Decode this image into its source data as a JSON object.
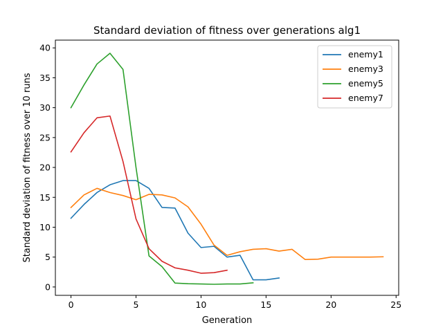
{
  "chart_data": {
    "type": "line",
    "title": "Standard deviation of fitness over generations alg1",
    "xlabel": "Generation",
    "ylabel": "Standard deviation of fitness over 10 runs",
    "xlim": [
      -1.2,
      25.2
    ],
    "ylim": [
      -1.4,
      41.3
    ],
    "xticks": [
      0,
      5,
      10,
      15,
      20,
      25
    ],
    "yticks": [
      0,
      5,
      10,
      15,
      20,
      25,
      30,
      35,
      40
    ],
    "grid": false,
    "legend_position": "top-right",
    "series": [
      {
        "name": "enemy1",
        "color": "#1f77b4",
        "x": [
          0,
          1,
          2,
          3,
          4,
          5,
          6,
          7,
          8,
          9,
          10,
          11,
          12,
          13,
          14,
          15,
          16
        ],
        "y": [
          11.5,
          13.8,
          15.8,
          17.1,
          17.8,
          17.8,
          16.5,
          13.3,
          13.2,
          9.0,
          6.6,
          6.8,
          5.0,
          5.3,
          1.2,
          1.2,
          1.5
        ]
      },
      {
        "name": "enemy3",
        "color": "#ff7f0e",
        "x": [
          0,
          1,
          2,
          3,
          4,
          5,
          6,
          7,
          8,
          9,
          10,
          11,
          12,
          13,
          14,
          15,
          16,
          17,
          18,
          19,
          20,
          21,
          22,
          23,
          24
        ],
        "y": [
          13.3,
          15.4,
          16.5,
          15.8,
          15.3,
          14.6,
          15.5,
          15.4,
          14.9,
          13.4,
          10.5,
          7.0,
          5.3,
          5.9,
          6.3,
          6.4,
          6.0,
          6.3,
          4.6,
          4.65,
          5.0,
          5.0,
          5.0,
          5.0,
          5.05
        ]
      },
      {
        "name": "enemy5",
        "color": "#2ca02c",
        "x": [
          0,
          1,
          2,
          3,
          4,
          5,
          6,
          7,
          8,
          9,
          10,
          11,
          12,
          13,
          14
        ],
        "y": [
          30.0,
          33.8,
          37.3,
          39.1,
          36.4,
          20.0,
          5.2,
          3.4,
          0.65,
          0.55,
          0.5,
          0.45,
          0.5,
          0.5,
          0.7
        ]
      },
      {
        "name": "enemy7",
        "color": "#d62728",
        "x": [
          0,
          1,
          2,
          3,
          4,
          5,
          6,
          7,
          8,
          9,
          10,
          11,
          12
        ],
        "y": [
          22.6,
          25.8,
          28.3,
          28.6,
          21.0,
          11.4,
          6.4,
          4.3,
          3.2,
          2.8,
          2.3,
          2.4,
          2.8
        ]
      }
    ]
  }
}
